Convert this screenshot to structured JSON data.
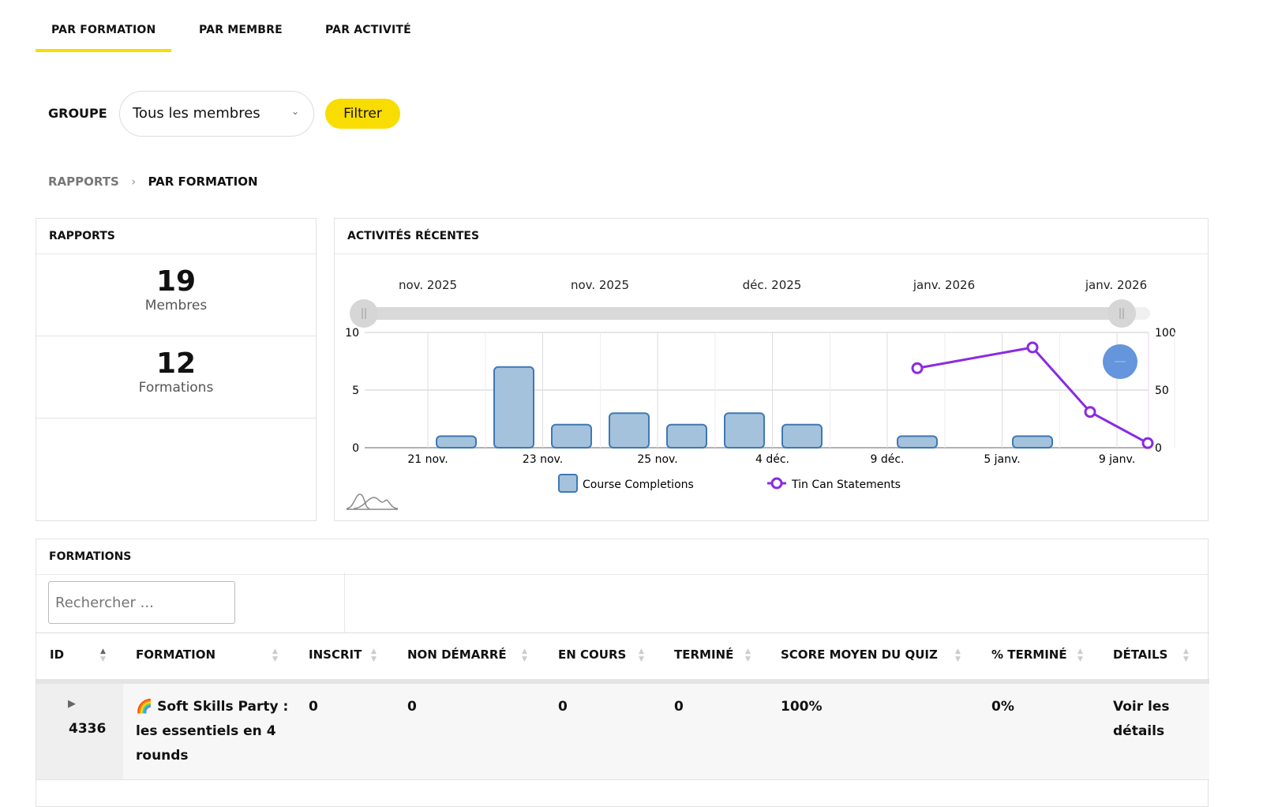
{
  "tabs": [
    {
      "label": "PAR FORMATION",
      "active": true
    },
    {
      "label": "PAR MEMBRE"
    },
    {
      "label": "PAR ACTIVITÉ"
    }
  ],
  "filter": {
    "label": "GROUPE",
    "select_value": "Tous les membres",
    "button": "Filtrer"
  },
  "breadcrumb": {
    "root": "RAPPORTS",
    "sep": "›",
    "current": "PAR FORMATION"
  },
  "rapports": {
    "title": "RAPPORTS",
    "stats": [
      {
        "value": "19",
        "label": "Membres"
      },
      {
        "value": "12",
        "label": "Formations"
      }
    ]
  },
  "activites": {
    "title": "ACTIVITÉS RÉCENTES"
  },
  "chart_data": {
    "type": "bar+line",
    "navigator_labels": [
      "nov. 2025",
      "nov. 2025",
      "déc. 2025",
      "janv. 2026",
      "janv. 2026"
    ],
    "x_tick_labels": [
      "21 nov.",
      "23 nov.",
      "25 nov.",
      "4 déc.",
      "9 déc.",
      "5 janv.",
      "9 janv."
    ],
    "y_left": {
      "ticks": [
        0,
        5,
        10
      ],
      "ylim": [
        0,
        10
      ]
    },
    "y_right": {
      "ticks": [
        0,
        50,
        100
      ],
      "ylim": [
        0,
        100
      ]
    },
    "series": [
      {
        "name": "Course Completions",
        "type": "bar",
        "color": "#a5c2dc",
        "values": [
          0,
          1,
          7,
          2,
          3,
          2,
          3,
          2,
          0,
          1,
          0,
          1,
          0,
          0
        ]
      },
      {
        "name": "Tin Can Statements",
        "type": "line",
        "color": "#8a2be2",
        "values": [
          null,
          null,
          null,
          null,
          null,
          null,
          null,
          null,
          null,
          69,
          null,
          87,
          31,
          4
        ]
      }
    ],
    "grid": true,
    "legend": "bottom"
  },
  "formations": {
    "title": "FORMATIONS",
    "search_placeholder": "Rechercher ...",
    "columns": [
      "ID",
      "FORMATION",
      "INSCRIT",
      "NON DÉMARRÉ",
      "EN COURS",
      "TERMINÉ",
      "SCORE MOYEN DU QUIZ",
      "% TERMINÉ",
      "DÉTAILS"
    ],
    "rows": [
      {
        "id": "4336",
        "formation": "🌈 Soft Skills Party : les essentiels en 4 rounds",
        "inscrit": "0",
        "non_demarre": "0",
        "en_cours": "0",
        "termine": "0",
        "score": "100%",
        "pct": "0%",
        "details": "Voir les détails"
      }
    ]
  }
}
